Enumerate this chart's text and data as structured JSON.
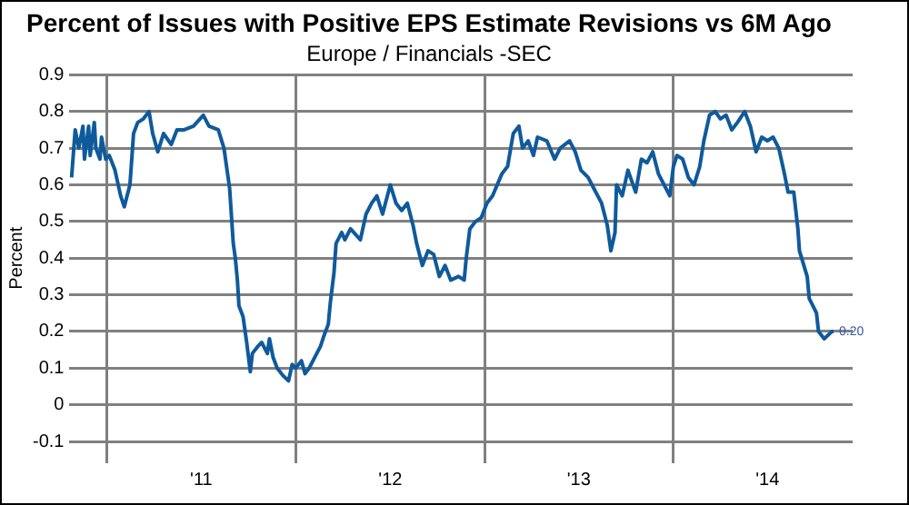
{
  "chart_data": {
    "type": "line",
    "title": "Percent of Issues with Positive EPS Estimate Revisions vs 6M Ago",
    "subtitle": "Europe / Financials -SEC",
    "ylabel": "Percent",
    "x": [
      "2010-10-24",
      "2010-10-31",
      "2010-11-07",
      "2010-11-15",
      "2010-11-18",
      "2010-11-26",
      "2010-11-29",
      "2010-12-07",
      "2010-12-10",
      "2010-12-18",
      "2010-12-21",
      "2010-12-29",
      "2011-01-05",
      "2011-01-16",
      "2011-01-27",
      "2011-02-03",
      "2011-02-14",
      "2011-02-21",
      "2011-03-01",
      "2011-03-12",
      "2011-03-23",
      "2011-03-30",
      "2011-04-09",
      "2011-04-20",
      "2011-05-05",
      "2011-05-16",
      "2011-05-30",
      "2011-06-17",
      "2011-07-06",
      "2011-07-17",
      "2011-08-04",
      "2011-08-15",
      "2011-08-26",
      "2011-09-02",
      "2011-09-06",
      "2011-09-10",
      "2011-09-13",
      "2011-09-21",
      "2011-09-28",
      "2011-10-05",
      "2011-10-09",
      "2011-10-20",
      "2011-10-27",
      "2011-11-07",
      "2011-11-11",
      "2011-11-18",
      "2011-11-26",
      "2011-12-07",
      "2011-12-18",
      "2011-12-25",
      "2012-01-01",
      "2012-01-12",
      "2012-01-19",
      "2012-01-27",
      "2012-02-07",
      "2012-02-18",
      "2012-02-25",
      "2012-03-04",
      "2012-03-08",
      "2012-03-15",
      "2012-03-19",
      "2012-03-30",
      "2012-04-05",
      "2012-04-16",
      "2012-05-05",
      "2012-05-16",
      "2012-05-27",
      "2012-06-06",
      "2012-06-17",
      "2012-07-02",
      "2012-07-13",
      "2012-07-24",
      "2012-08-04",
      "2012-08-15",
      "2012-08-22",
      "2012-09-02",
      "2012-09-13",
      "2012-09-24",
      "2012-10-05",
      "2012-10-16",
      "2012-10-27",
      "2012-11-11",
      "2012-11-22",
      "2012-11-26",
      "2012-12-03",
      "2012-12-14",
      "2012-12-25",
      "2013-01-05",
      "2013-01-16",
      "2013-02-03",
      "2013-02-14",
      "2013-02-25",
      "2013-03-08",
      "2013-03-15",
      "2013-03-26",
      "2013-04-05",
      "2013-04-13",
      "2013-05-01",
      "2013-05-16",
      "2013-05-27",
      "2013-06-14",
      "2013-06-25",
      "2013-07-06",
      "2013-07-20",
      "2013-07-31",
      "2013-08-15",
      "2013-08-26",
      "2013-09-02",
      "2013-09-10",
      "2013-09-13",
      "2013-09-24",
      "2013-10-05",
      "2013-10-20",
      "2013-10-31",
      "2013-11-11",
      "2013-11-22",
      "2013-12-03",
      "2013-12-14",
      "2013-12-25",
      "2014-01-01",
      "2014-01-08",
      "2014-01-19",
      "2014-01-30",
      "2014-02-10",
      "2014-02-21",
      "2014-03-01",
      "2014-03-12",
      "2014-03-23",
      "2014-04-02",
      "2014-04-13",
      "2014-04-24",
      "2014-05-05",
      "2014-05-19",
      "2014-05-30",
      "2014-06-10",
      "2014-06-21",
      "2014-07-02",
      "2014-07-13",
      "2014-07-24",
      "2014-08-04",
      "2014-08-11",
      "2014-08-22",
      "2014-08-30",
      "2014-09-02",
      "2014-09-17",
      "2014-09-21",
      "2014-10-05",
      "2014-10-09",
      "2014-10-20",
      "2014-11-04",
      "2014-11-07"
    ],
    "series": [
      {
        "color": "#0f5a9c",
        "values": [
          0.62,
          0.75,
          0.7,
          0.76,
          0.67,
          0.76,
          0.68,
          0.77,
          0.7,
          0.67,
          0.73,
          0.67,
          0.68,
          0.64,
          0.57,
          0.54,
          0.6,
          0.74,
          0.77,
          0.78,
          0.8,
          0.74,
          0.69,
          0.74,
          0.71,
          0.75,
          0.75,
          0.76,
          0.79,
          0.76,
          0.75,
          0.7,
          0.59,
          0.44,
          0.4,
          0.34,
          0.27,
          0.24,
          0.17,
          0.09,
          0.14,
          0.16,
          0.17,
          0.14,
          0.18,
          0.13,
          0.1,
          0.08,
          0.065,
          0.11,
          0.1,
          0.12,
          0.085,
          0.1,
          0.13,
          0.16,
          0.19,
          0.22,
          0.28,
          0.36,
          0.44,
          0.47,
          0.45,
          0.48,
          0.45,
          0.52,
          0.55,
          0.57,
          0.52,
          0.6,
          0.55,
          0.53,
          0.55,
          0.49,
          0.44,
          0.38,
          0.42,
          0.41,
          0.35,
          0.38,
          0.34,
          0.35,
          0.34,
          0.4,
          0.48,
          0.5,
          0.51,
          0.55,
          0.57,
          0.63,
          0.65,
          0.74,
          0.76,
          0.7,
          0.72,
          0.68,
          0.73,
          0.72,
          0.67,
          0.7,
          0.72,
          0.69,
          0.64,
          0.62,
          0.59,
          0.55,
          0.49,
          0.42,
          0.47,
          0.6,
          0.57,
          0.64,
          0.58,
          0.67,
          0.66,
          0.69,
          0.63,
          0.6,
          0.57,
          0.65,
          0.68,
          0.67,
          0.62,
          0.6,
          0.65,
          0.72,
          0.79,
          0.8,
          0.78,
          0.79,
          0.75,
          0.77,
          0.8,
          0.76,
          0.69,
          0.73,
          0.72,
          0.73,
          0.7,
          0.63,
          0.58,
          0.58,
          0.48,
          0.42,
          0.35,
          0.29,
          0.25,
          0.2,
          0.18,
          0.2,
          0.2
        ]
      }
    ],
    "annotations": [
      {
        "text": "0.20",
        "x": "2014-11-07",
        "y": 0.2
      }
    ],
    "xlim": [
      "2010-10-20",
      "2014-12-14"
    ],
    "xticks": [
      {
        "value": "2011-01-01",
        "label": null
      },
      {
        "value": "2011-07-02",
        "label": "'11"
      },
      {
        "value": "2012-01-01",
        "label": null
      },
      {
        "value": "2012-07-02",
        "label": "'12"
      },
      {
        "value": "2013-01-01",
        "label": null
      },
      {
        "value": "2013-07-02",
        "label": "'13"
      },
      {
        "value": "2014-01-01",
        "label": null
      },
      {
        "value": "2014-07-02",
        "label": "'14"
      }
    ],
    "ylim": [
      -0.1,
      0.9
    ],
    "yticks": [
      -0.1,
      0,
      0.1,
      0.2,
      0.3,
      0.4,
      0.5,
      0.6,
      0.7,
      0.8,
      0.9
    ],
    "grid": true,
    "legend": false,
    "marker": "none",
    "line_style": "solid"
  }
}
